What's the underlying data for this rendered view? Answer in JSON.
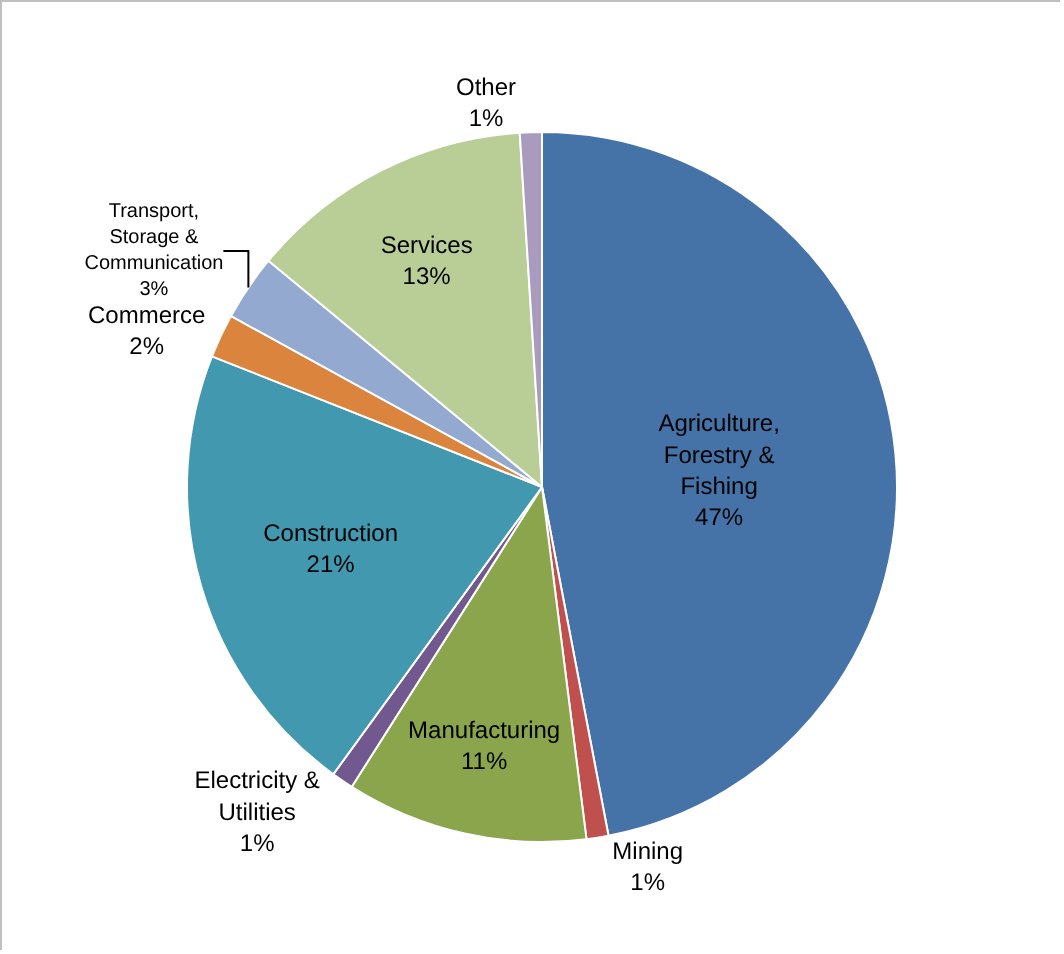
{
  "chart_data": {
    "type": "pie",
    "categories": [
      "Agriculture,\nForestry &\nFishing",
      "Mining",
      "Manufacturing",
      "Electricity &\nUtilities",
      "Construction",
      "Commerce",
      "Transport,\nStorage &\nCommunication",
      "Services",
      "Other"
    ],
    "values": [
      47,
      1,
      11,
      1,
      21,
      2,
      3,
      13,
      1
    ],
    "value_labels": [
      "47%",
      "1%",
      "11%",
      "1%",
      "21%",
      "2%",
      "3%",
      "13%",
      "1%"
    ],
    "colors": [
      "#4572a7",
      "#c0504d",
      "#8aa54b",
      "#71588f",
      "#4198af",
      "#db843d",
      "#93a9cf",
      "#b9cd96",
      "#a99bbd"
    ],
    "legend": false
  }
}
